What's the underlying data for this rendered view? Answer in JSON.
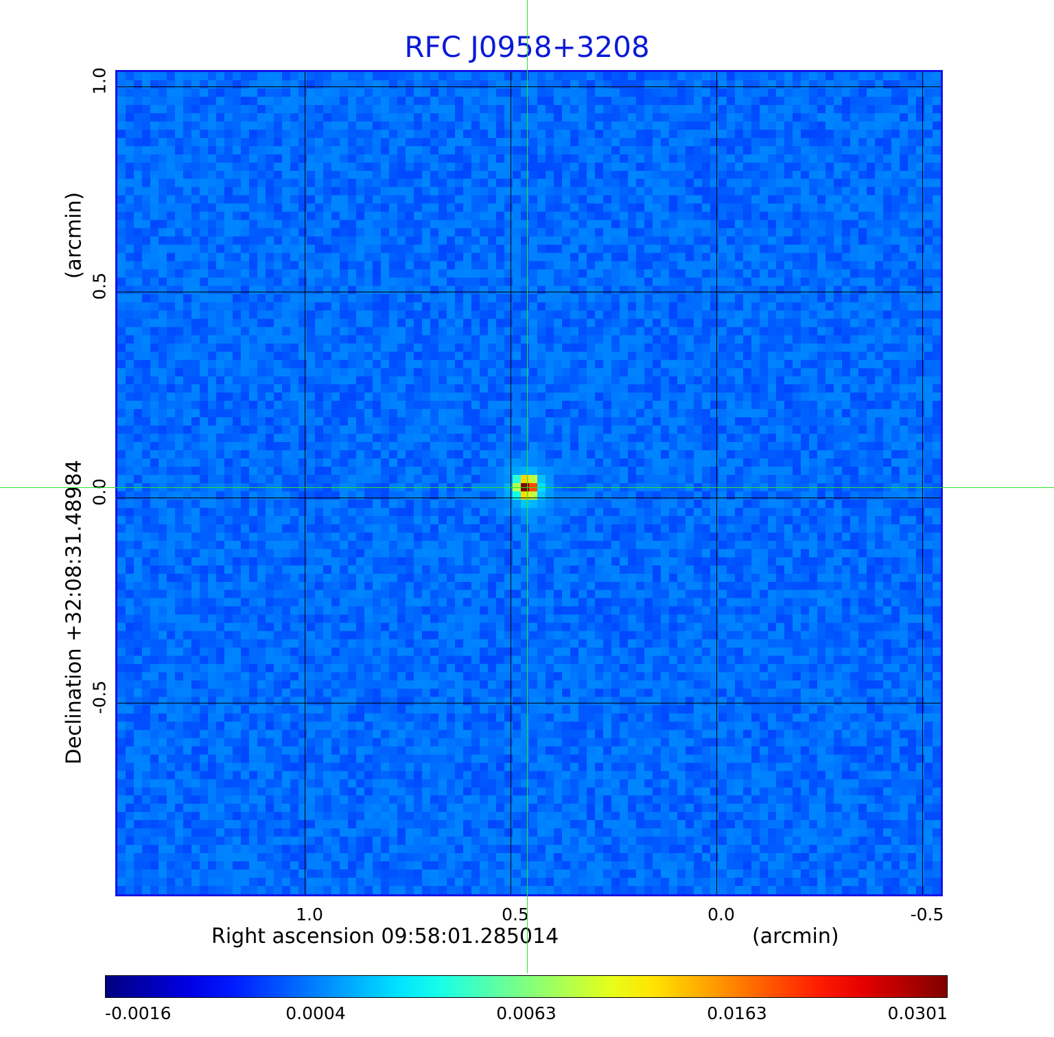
{
  "chart_data": {
    "type": "heatmap",
    "title": "RFC J0958+3208",
    "xlabel": "Right ascension  09:58:01.285014",
    "xunit": "(arcmin)",
    "ylabel": "Declination  +32:08:31.48984",
    "yunit": "(arcmin)",
    "x_ticks": [
      "1.0",
      "0.5",
      "0.0",
      "-0.5"
    ],
    "x_tick_values": [
      1.0,
      0.5,
      0.0,
      -0.5
    ],
    "y_ticks": [
      "1.0",
      "0.5",
      "0.0",
      "-0.5"
    ],
    "y_tick_values": [
      1.0,
      0.5,
      0.0,
      -0.5
    ],
    "xlim": [
      1.46,
      -0.55
    ],
    "ylim": [
      -0.97,
      1.04
    ],
    "grid": true,
    "crosshair": {
      "x": 0.46,
      "y": 0.025,
      "color": "#28e628"
    },
    "source": {
      "x": 0.46,
      "y": 0.025,
      "peak": 0.0301
    },
    "colorbar": {
      "orientation": "horizontal",
      "placement": "bottom",
      "colormap": "jet",
      "tick_labels": [
        "-0.0016",
        "0.0004",
        "0.0063",
        "0.0163",
        "0.0301"
      ],
      "tick_values": [
        -0.0016,
        0.0004,
        0.0063,
        0.0163,
        0.0301
      ]
    },
    "background_level": 0.0004,
    "colors": {
      "title": "#0a1ad6",
      "frame": "#1414e6",
      "grid": "#000000"
    }
  }
}
